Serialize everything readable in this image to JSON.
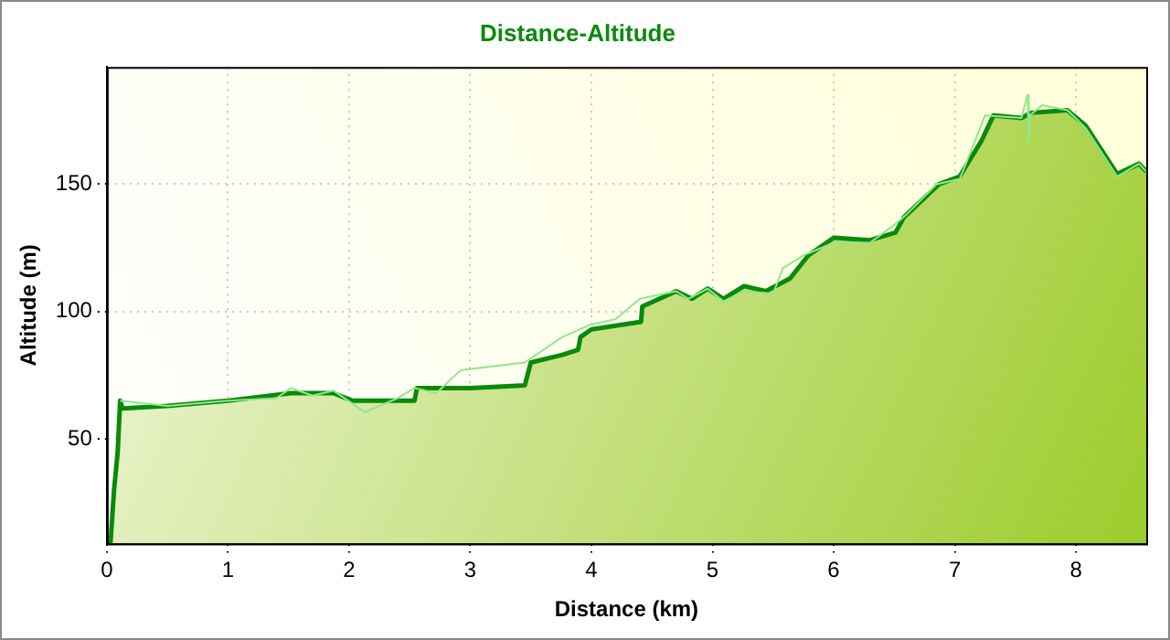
{
  "chart_data": {
    "type": "area",
    "title": "Distance-Altitude",
    "xlabel": "Distance (km)",
    "ylabel": "Altitude (m)",
    "xlim": [
      0,
      8.58
    ],
    "xticks": [
      0,
      1,
      2,
      3,
      4,
      5,
      6,
      7,
      8
    ],
    "ylim": [
      9,
      196
    ],
    "yticks": [
      50,
      100,
      150
    ],
    "grid": true,
    "legend": false,
    "marker": "none",
    "line_style": "solid",
    "series": [
      {
        "type": "area",
        "color": "#0a8a0a",
        "x": [
          0.03,
          0.06,
          0.09,
          0.11,
          0.13,
          0.5,
          1,
          1.52,
          1.87,
          2.03,
          2.54,
          2.56,
          3.0,
          3.45,
          3.5,
          3.76,
          3.89,
          3.91,
          4.0,
          4.41,
          4.42,
          4.7,
          4.83,
          4.96,
          5.09,
          5.26,
          5.44,
          5.64,
          5.79,
          6.0,
          6.3,
          6.51,
          6.58,
          6.87,
          7.04,
          7.22,
          7.32,
          7.55,
          7.63,
          7.93,
          8.08,
          8.34,
          8.52,
          8.58
        ],
        "values": [
          9,
          30,
          45,
          65,
          62,
          63,
          65,
          68,
          68,
          65,
          65,
          70,
          70,
          71,
          80,
          83,
          85,
          90,
          93,
          96,
          102,
          108,
          105,
          109,
          105,
          110,
          108,
          113,
          122,
          129,
          128,
          131,
          137,
          150,
          153,
          167,
          177,
          176,
          178,
          179,
          173,
          154,
          158,
          155
        ]
      },
      {
        "type": "line",
        "color": "#8fe88f",
        "x": [
          0.11,
          0.5,
          1,
          1.4,
          1.52,
          1.7,
          1.87,
          2.13,
          2.4,
          2.54,
          2.72,
          2.92,
          3.45,
          3.76,
          4.0,
          4.2,
          4.4,
          4.6,
          4.7,
          4.8,
          4.96,
          5.09,
          5.26,
          5.5,
          5.58,
          5.75,
          6.0,
          6.3,
          6.5,
          6.6,
          6.85,
          7.04,
          7.15,
          7.25,
          7.55,
          7.6,
          7.61,
          7.62,
          7.72,
          7.93,
          8.08,
          8.34,
          8.52,
          8.58
        ],
        "values": [
          65,
          63,
          65,
          66,
          70,
          67,
          69,
          60.5,
          66,
          70,
          68,
          77,
          80,
          90,
          95,
          97,
          105,
          107,
          108,
          105,
          109,
          104,
          108,
          107,
          117,
          122,
          127,
          127,
          134,
          138,
          150,
          152,
          165,
          177,
          176,
          185,
          167,
          177,
          181,
          179,
          172,
          153,
          158,
          155
        ]
      }
    ]
  }
}
